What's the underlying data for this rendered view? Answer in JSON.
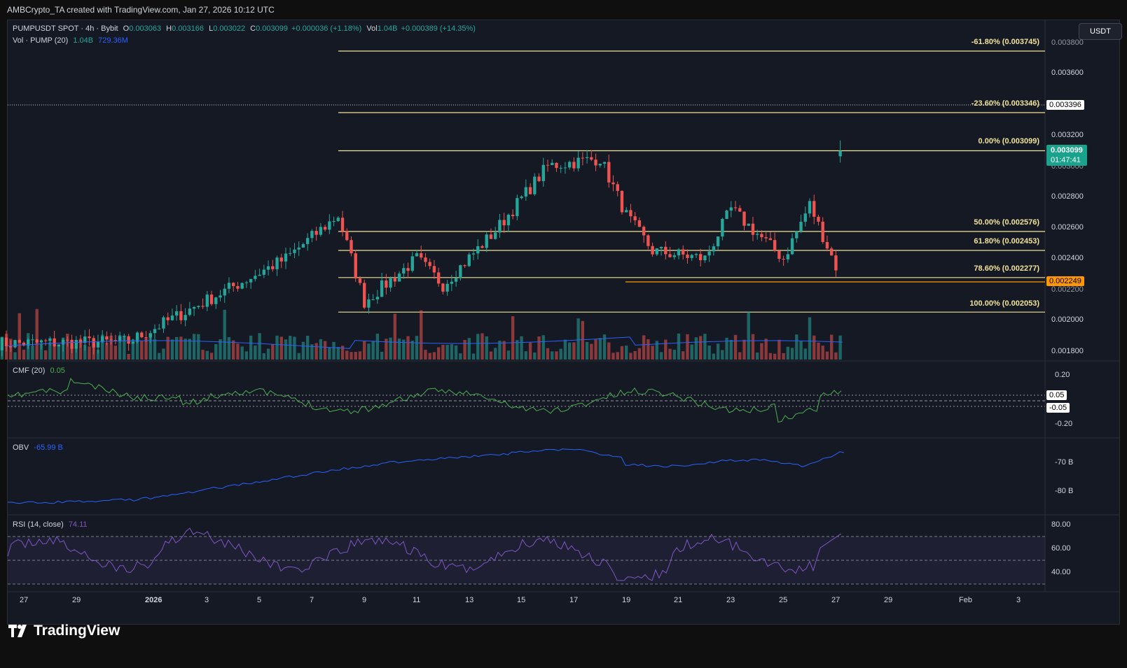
{
  "header": {
    "credit": "AMBCrypto_TA created with TradingView.com, Jan 27, 2026 10:12 UTC"
  },
  "legend": {
    "symbol": "PUMPUSDT SPOT · 4h · Bybit",
    "o_label": "O",
    "o": "0.003063",
    "h_label": "H",
    "h": "0.003166",
    "l_label": "L",
    "l": "0.003022",
    "c_label": "C",
    "c": "0.003099",
    "change": "+0.000036 (+1.18%)",
    "vol_label": "Vol",
    "vol": "1.04B",
    "vol_change": "+0.000389 (+14.35%)",
    "vol_study": "Vol · PUMP (20)",
    "vol_value": "1.04B",
    "vol_ma": "729.36M"
  },
  "currency_button": "USDT",
  "price_axis": [
    "0.003600",
    "0.003200",
    "0.002800",
    "0.002600",
    "0.002400",
    "0.002000",
    "0.001800"
  ],
  "price_axis_partial": [
    "0.003800",
    "0.003000",
    "0.002200"
  ],
  "price_tags": {
    "dotted_level": "0.003396",
    "last_price": "0.003099",
    "countdown": "01:47:41",
    "support_level": "0.002249"
  },
  "fib_levels": [
    {
      "label": "-61.80% (0.003745)",
      "price": 0.003745
    },
    {
      "label": "-23.60% (0.003346)",
      "price": 0.003346
    },
    {
      "label": "0.00% (0.003099)",
      "price": 0.003099
    },
    {
      "label": "50.00% (0.002576)",
      "price": 0.002576
    },
    {
      "label": "61.80% (0.002453)",
      "price": 0.002453
    },
    {
      "label": "78.60% (0.002277)",
      "price": 0.002277
    },
    {
      "label": "100.00% (0.002053)",
      "price": 0.002053
    }
  ],
  "cmf": {
    "label": "CMF (20)",
    "value": "0.05",
    "axis": [
      "0.20",
      "0.05",
      "-0.05",
      "-0.20"
    ]
  },
  "obv": {
    "label": "OBV",
    "value": "-65.99 B",
    "axis": [
      "-70 B",
      "-80 B"
    ]
  },
  "rsi": {
    "label": "RSI (14, close)",
    "value": "74.11",
    "axis": [
      "80.00",
      "60.00",
      "40.00"
    ]
  },
  "time_axis": [
    "27",
    "29",
    "2026",
    "3",
    "5",
    "7",
    "9",
    "11",
    "13",
    "15",
    "17",
    "19",
    "21",
    "23",
    "25",
    "27",
    "29",
    "Feb",
    "3"
  ],
  "brand": "TradingView",
  "colors": {
    "up": "#26a69a",
    "down": "#ef5350",
    "fib": "#f0e39a",
    "cmf": "#4caf50",
    "obv": "#2962ff",
    "rsi": "#7e57c2",
    "support": "#ff9800"
  },
  "chart_data": [
    {
      "type": "candlestick",
      "title": "PUMPUSDT SPOT · 4h · Bybit",
      "ylim": [
        0.00175,
        0.0038
      ],
      "x_range": [
        "Dec 26, 2025",
        "Feb 4, 2026"
      ],
      "last_candle": {
        "o": 0.003063,
        "h": 0.003166,
        "l": 0.003022,
        "c": 0.003099
      },
      "key_points": [
        {
          "date": "Dec 26",
          "price": 0.00185
        },
        {
          "date": "Dec 31",
          "price": 0.00186
        },
        {
          "date": "Jan 2",
          "price": 0.00213
        },
        {
          "date": "Jan 5",
          "price": 0.0024
        },
        {
          "date": "Jan 7",
          "price": 0.00268
        },
        {
          "date": "Jan 8",
          "price": 0.00212
        },
        {
          "date": "Jan 10",
          "price": 0.0024
        },
        {
          "date": "Jan 11",
          "price": 0.00223
        },
        {
          "date": "Jan 13",
          "price": 0.00258
        },
        {
          "date": "Jan 15",
          "price": 0.003
        },
        {
          "date": "Jan 17",
          "price": 0.00305
        },
        {
          "date": "Jan 18",
          "price": 0.00268
        },
        {
          "date": "Jan 19",
          "price": 0.00245
        },
        {
          "date": "Jan 21",
          "price": 0.0024
        },
        {
          "date": "Jan 22",
          "price": 0.00272
        },
        {
          "date": "Jan 24",
          "price": 0.0024
        },
        {
          "date": "Jan 25",
          "price": 0.00275
        },
        {
          "date": "Jan 26",
          "price": 0.00235
        },
        {
          "date": "Jan 27",
          "price": 0.0031
        }
      ]
    },
    {
      "type": "line",
      "title": "CMF (20)",
      "last_value": 0.05,
      "ylim": [
        -0.25,
        0.28
      ]
    },
    {
      "type": "line",
      "title": "OBV",
      "last_value": "-65.99 B"
    },
    {
      "type": "line",
      "title": "RSI (14, close)",
      "last_value": 74.11,
      "bands": [
        30,
        70
      ]
    }
  ]
}
